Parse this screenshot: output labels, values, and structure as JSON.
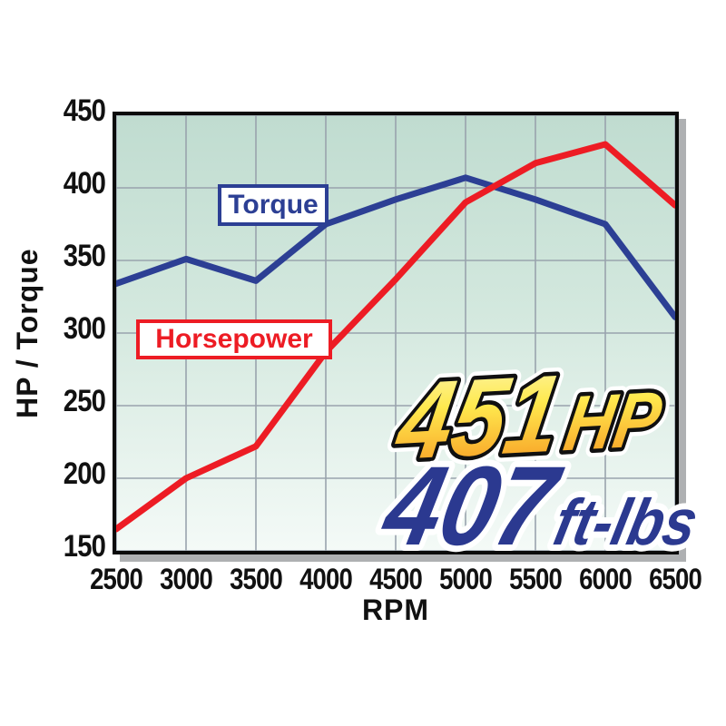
{
  "chart_data": {
    "type": "line",
    "title": "",
    "xlabel": "RPM",
    "ylabel": "HP / Torque",
    "xlim": [
      2500,
      6500
    ],
    "ylim": [
      150,
      450
    ],
    "xticks": [
      2500,
      3000,
      3500,
      4000,
      4500,
      5000,
      5500,
      6000,
      6500
    ],
    "yticks": [
      450,
      400,
      350,
      300,
      250,
      200,
      150
    ],
    "grid": true,
    "legend_position": "inline-labels",
    "x": [
      2500,
      3000,
      3500,
      4000,
      4500,
      5000,
      5500,
      6000,
      6500
    ],
    "series": [
      {
        "name": "Torque",
        "color": "#2c3f94",
        "values": [
          334,
          351,
          336,
          375,
          392,
          407,
          392,
          375,
          311
        ]
      },
      {
        "name": "Horsepower",
        "color": "#ed1c24",
        "values": [
          165,
          200,
          222,
          287,
          337,
          390,
          417,
          430,
          388
        ]
      }
    ]
  },
  "labels": {
    "torque_legend": "Torque",
    "horsepower_legend": "Horsepower",
    "x_axis_title": "RPM",
    "y_axis_title": "HP / Torque"
  },
  "callout": {
    "hp_value": "451",
    "hp_unit": "HP",
    "torque_value": "407",
    "torque_unit": "ft-lbs"
  },
  "colors": {
    "torque_line": "#2c3f94",
    "horsepower_line": "#ed1c24",
    "grid": "#99a3ad",
    "plot_bg_top": "#c0dcd0",
    "plot_bg_bottom": "#f4faf7",
    "frame_shadow": "#aeb0b2",
    "callout_gold_top": "#fcf6b1",
    "callout_gold_mid": "#ffe94e",
    "callout_gold_bottom": "#f6921e",
    "callout_blue": "#2b3990"
  }
}
